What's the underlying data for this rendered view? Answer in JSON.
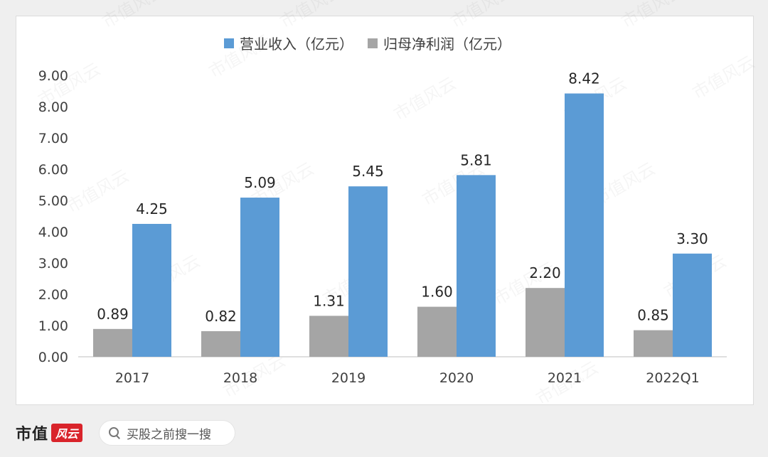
{
  "chart_data": {
    "type": "bar",
    "categories": [
      "2017",
      "2018",
      "2019",
      "2020",
      "2021",
      "2022Q1"
    ],
    "series": [
      {
        "name": "归母净利润（亿元）",
        "color": "#a5a5a5",
        "values": [
          0.89,
          0.82,
          1.31,
          1.6,
          2.2,
          0.85
        ],
        "labels": [
          "0.89",
          "0.82",
          "1.31",
          "1.60",
          "2.20",
          "0.85"
        ]
      },
      {
        "name": "营业收入（亿元）",
        "color": "#5b9bd5",
        "values": [
          4.25,
          5.09,
          5.45,
          5.81,
          8.42,
          3.3
        ],
        "labels": [
          "4.25",
          "5.09",
          "5.45",
          "5.81",
          "8.42",
          "3.30"
        ]
      }
    ],
    "legend_order": [
      1,
      0
    ],
    "legend_position": "top",
    "ylim": [
      0,
      9
    ],
    "yticks": [
      "0.00",
      "1.00",
      "2.00",
      "3.00",
      "4.00",
      "5.00",
      "6.00",
      "7.00",
      "8.00",
      "9.00"
    ],
    "grid": false
  },
  "watermark": "市值风云",
  "footer": {
    "brand": "市值",
    "brand_mark": "风云",
    "search_placeholder": "买股之前搜一搜"
  }
}
